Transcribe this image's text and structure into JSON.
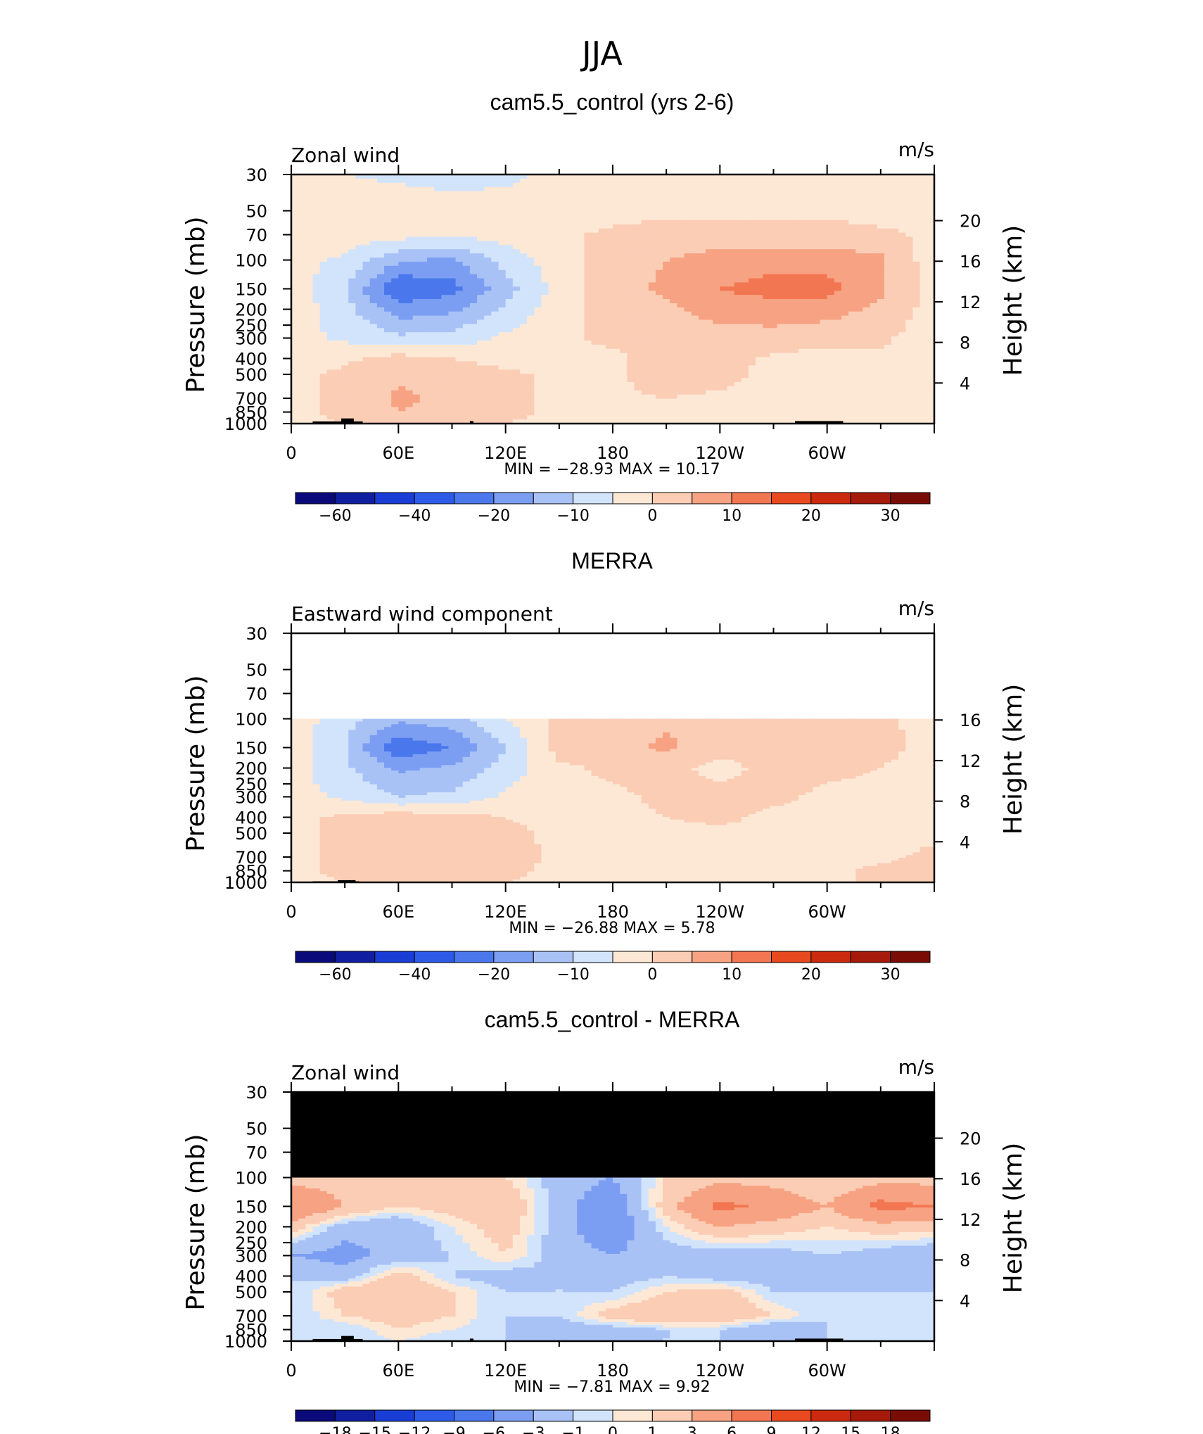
{
  "page": {
    "title": "JJA"
  },
  "colors": {
    "panel_abs": [
      "#0a0a7a",
      "#0f1fa0",
      "#1a3dd6",
      "#2d5be8",
      "#4a78ec",
      "#7c9ef2",
      "#a9c2f6",
      "#d2e4fb",
      "#fde8d6",
      "#fbcdb5",
      "#f7a282",
      "#f37652",
      "#e8491f",
      "#cc2a0e",
      "#a51a0a",
      "#7a0c06"
    ],
    "panel_diff": [
      "#0a0a7a",
      "#0f1fa0",
      "#1a3dd6",
      "#2d5be8",
      "#4a78ec",
      "#7c9ef2",
      "#a9c2f6",
      "#d2e4fb",
      "#fde8d6",
      "#fbcdb5",
      "#f7a282",
      "#f37652",
      "#e8491f",
      "#cc2a0e",
      "#a51a0a",
      "#7a0c06"
    ],
    "missing": "#000000",
    "topography": "#000000"
  },
  "chart_data": [
    {
      "type": "heatmap",
      "title": "cam5.5_control (yrs 2-6)",
      "left_label": "Zonal wind",
      "units": "m/s",
      "ylabel": "Pressure (mb)",
      "ylabel_right": "Height (km)",
      "x_ticklabels": [
        "0",
        "60E",
        "120E",
        "180",
        "120W",
        "60W"
      ],
      "x_ticks_deg": [
        0,
        60,
        120,
        180,
        240,
        300
      ],
      "xlim": [
        0,
        360
      ],
      "y_ticklabels": [
        "30",
        "50",
        "70",
        "100",
        "150",
        "200",
        "250",
        "300",
        "400",
        "500",
        "700",
        "850",
        "1000"
      ],
      "y_ticks": [
        30,
        50,
        70,
        100,
        150,
        200,
        250,
        300,
        400,
        500,
        700,
        850,
        1000
      ],
      "ylim": [
        1000,
        30
      ],
      "y_scale": "log",
      "right_ticklabels": [
        "20",
        "16",
        "12",
        "8",
        "4"
      ],
      "right_ticks_km": [
        20,
        16,
        12,
        8,
        4
      ],
      "min_max_label": "MIN = −28.93   MAX =  10.17",
      "min": -28.93,
      "max": 10.17,
      "colorbar_labels": [
        "−60",
        "−40",
        "−20",
        "−10",
        "0",
        "10",
        "20",
        "30"
      ],
      "colorbar_levels": [
        -70,
        -60,
        -50,
        -40,
        -30,
        -20,
        -15,
        -10,
        -5,
        0,
        5,
        10,
        15,
        20,
        25,
        30,
        35
      ],
      "data_top_mb": 30,
      "field": {
        "lon": [
          0,
          30,
          60,
          90,
          120,
          150,
          180,
          210,
          240,
          270,
          300,
          330,
          360
        ],
        "lev": [
          30,
          50,
          70,
          100,
          150,
          200,
          300,
          400,
          500,
          700,
          850,
          1000
        ],
        "u": [
          [
            -4,
            -5,
            -6,
            -7,
            -6,
            -4,
            -3,
            -3,
            -3,
            -3,
            -4,
            -4,
            -4
          ],
          [
            -2,
            -2,
            -2,
            -3,
            -3,
            -2,
            -2,
            -1,
            -1,
            -1,
            -1,
            -2,
            -2
          ],
          [
            -1,
            -2,
            -3,
            -4,
            -3,
            -1,
            1,
            2,
            2,
            2,
            2,
            1,
            -1
          ],
          [
            -3,
            -6,
            -14,
            -16,
            -8,
            -2,
            2,
            5,
            7,
            8,
            8,
            6,
            -3
          ],
          [
            -2,
            -10,
            -25,
            -22,
            -12,
            -3,
            3,
            6,
            10,
            12,
            12,
            6,
            -2
          ],
          [
            -2,
            -8,
            -18,
            -16,
            -9,
            -2,
            2,
            4,
            7,
            8,
            7,
            4,
            -2
          ],
          [
            -3,
            -6,
            -9,
            -8,
            -4,
            -1,
            1,
            2,
            3,
            3,
            2,
            1,
            -3
          ],
          [
            -2,
            -1,
            2,
            0,
            -2,
            -1,
            -1,
            2,
            2,
            -1,
            -2,
            -1,
            -2
          ],
          [
            -1,
            1,
            4,
            3,
            1,
            -1,
            -1,
            3,
            2,
            -2,
            -3,
            -1,
            -1
          ],
          [
            -1,
            1,
            6,
            4,
            1,
            -1,
            -1,
            0,
            -1,
            -2,
            -4,
            -2,
            -1
          ],
          [
            -1,
            1,
            5,
            3,
            1,
            -1,
            -1,
            -1,
            -2,
            -3,
            -2,
            -1,
            -1
          ],
          [
            -1,
            0,
            2,
            1,
            0,
            -1,
            -1,
            -1,
            -1,
            -1,
            -1,
            -1,
            -1
          ]
        ]
      },
      "topography": [
        {
          "lon_start": 12,
          "lon_end": 40,
          "top_mb": 970
        },
        {
          "lon_start": 28,
          "lon_end": 35,
          "top_mb": 930
        },
        {
          "lon_start": 100,
          "lon_end": 102,
          "top_mb": 965
        },
        {
          "lon_start": 282,
          "lon_end": 309,
          "top_mb": 965
        }
      ]
    },
    {
      "type": "heatmap",
      "title": "MERRA",
      "left_label": "Eastward wind component",
      "units": "m/s",
      "ylabel": "Pressure (mb)",
      "ylabel_right": "Height (km)",
      "x_ticklabels": [
        "0",
        "60E",
        "120E",
        "180",
        "120W",
        "60W"
      ],
      "x_ticks_deg": [
        0,
        60,
        120,
        180,
        240,
        300
      ],
      "xlim": [
        0,
        360
      ],
      "y_ticklabels": [
        "30",
        "50",
        "70",
        "100",
        "150",
        "200",
        "250",
        "300",
        "400",
        "500",
        "700",
        "850",
        "1000"
      ],
      "y_ticks": [
        30,
        50,
        70,
        100,
        150,
        200,
        250,
        300,
        400,
        500,
        700,
        850,
        1000
      ],
      "ylim": [
        1000,
        30
      ],
      "y_scale": "log",
      "right_ticklabels": [
        "16",
        "12",
        "8",
        "4"
      ],
      "right_ticks_km": [
        16,
        12,
        8,
        4
      ],
      "min_max_label": "MIN = −26.88   MAX =   5.78",
      "min": -26.88,
      "max": 5.78,
      "colorbar_labels": [
        "−60",
        "−40",
        "−20",
        "−10",
        "0",
        "10",
        "20",
        "30"
      ],
      "colorbar_levels": [
        -70,
        -60,
        -50,
        -40,
        -30,
        -20,
        -15,
        -10,
        -5,
        0,
        5,
        10,
        15,
        20,
        25,
        30,
        35
      ],
      "data_top_mb": 100,
      "field": {
        "lon": [
          0,
          30,
          60,
          90,
          120,
          150,
          180,
          210,
          240,
          270,
          300,
          330,
          360
        ],
        "lev": [
          100,
          150,
          200,
          300,
          400,
          500,
          700,
          850,
          1000
        ],
        "u": [
          [
            -2,
            -8,
            -14,
            -12,
            -5,
            1,
            2,
            4,
            4,
            3,
            2,
            1,
            -2
          ],
          [
            -2,
            -10,
            -24,
            -20,
            -10,
            2,
            3,
            6,
            2,
            3,
            3,
            2,
            -2
          ],
          [
            -3,
            -9,
            -16,
            -14,
            -8,
            -1,
            1,
            2,
            -2,
            2,
            1,
            0,
            -3
          ],
          [
            -3,
            -6,
            -10,
            -9,
            -4,
            -1,
            -1,
            1,
            2,
            1,
            -1,
            -1,
            -3
          ],
          [
            -1,
            1,
            3,
            2,
            0,
            -1,
            -1,
            0,
            1,
            -1,
            -1,
            -1,
            -1
          ],
          [
            -1,
            1,
            4,
            3,
            1,
            -1,
            -1,
            -1,
            -1,
            -1,
            -1,
            -1,
            -1
          ],
          [
            -1,
            1,
            5,
            4,
            2,
            -1,
            -1,
            -1,
            -1,
            -2,
            -1,
            -1,
            1
          ],
          [
            -1,
            1,
            3,
            2,
            1,
            -1,
            -1,
            -1,
            -1,
            -1,
            -1,
            1,
            2
          ],
          [
            -1,
            0,
            1,
            1,
            0,
            -1,
            -1,
            -1,
            -1,
            -1,
            -1,
            1,
            1
          ]
        ]
      },
      "topography": [
        {
          "lon_start": 12,
          "lon_end": 38,
          "top_mb": 985
        },
        {
          "lon_start": 26,
          "lon_end": 36,
          "top_mb": 970
        }
      ]
    },
    {
      "type": "heatmap",
      "title": "cam5.5_control - MERRA",
      "left_label": "Zonal wind",
      "units": "m/s",
      "ylabel": "Pressure (mb)",
      "ylabel_right": "Height (km)",
      "x_ticklabels": [
        "0",
        "60E",
        "120E",
        "180",
        "120W",
        "60W"
      ],
      "x_ticks_deg": [
        0,
        60,
        120,
        180,
        240,
        300
      ],
      "xlim": [
        0,
        360
      ],
      "y_ticklabels": [
        "30",
        "50",
        "70",
        "100",
        "150",
        "200",
        "250",
        "300",
        "400",
        "500",
        "700",
        "850",
        "1000"
      ],
      "y_ticks": [
        30,
        50,
        70,
        100,
        150,
        200,
        250,
        300,
        400,
        500,
        700,
        850,
        1000
      ],
      "ylim": [
        1000,
        30
      ],
      "y_scale": "log",
      "right_ticklabels": [
        "20",
        "16",
        "12",
        "8",
        "4"
      ],
      "right_ticks_km": [
        20,
        16,
        12,
        8,
        4
      ],
      "min_max_label": "MIN =   −7.81   MAX =   9.92",
      "min": -7.81,
      "max": 9.92,
      "colorbar_labels": [
        "−18",
        "−15",
        "−12",
        "−9",
        "−6",
        "−3",
        "−1",
        "0",
        "1",
        "3",
        "6",
        "9",
        "12",
        "15",
        "18"
      ],
      "colorbar_levels": [
        -21,
        -18,
        -15,
        -12,
        -9,
        -6,
        -3,
        -1,
        0,
        1,
        3,
        6,
        9,
        12,
        15,
        18,
        21
      ],
      "data_top_mb": 100,
      "missing_above_mb": 100,
      "field": {
        "lon": [
          0,
          30,
          60,
          90,
          120,
          150,
          180,
          210,
          240,
          270,
          300,
          330,
          360
        ],
        "lev": [
          100,
          150,
          200,
          300,
          400,
          500,
          700,
          850,
          1000
        ],
        "u": [
          [
            2,
            2,
            1,
            2,
            1,
            -2,
            -3,
            1,
            2,
            2,
            1,
            2,
            2
          ],
          [
            6,
            3,
            1,
            2,
            3,
            -2,
            -5,
            2,
            7,
            5,
            3,
            7,
            6
          ],
          [
            2,
            -2,
            -3,
            0,
            2,
            -2,
            -5,
            0,
            3,
            2,
            1,
            2,
            2
          ],
          [
            -3,
            -4,
            -2,
            -1,
            1,
            -2,
            -3,
            -2,
            -2,
            -2,
            -1,
            -2,
            -3
          ],
          [
            -1,
            -2,
            2,
            -1,
            -2,
            -1,
            -2,
            -1,
            -2,
            -2,
            -1,
            -2,
            -1
          ],
          [
            -1,
            2,
            3,
            1,
            -1,
            -1,
            -1,
            1,
            2,
            -1,
            -1,
            -1,
            -1
          ],
          [
            -1,
            1,
            2,
            1,
            -1,
            -1,
            2,
            3,
            3,
            1,
            -1,
            -1,
            -1
          ],
          [
            -1,
            -1,
            1,
            0,
            -1,
            -2,
            -2,
            -1,
            -1,
            -3,
            -1,
            -1,
            -1
          ],
          [
            -1,
            -1,
            0,
            -1,
            -1,
            -1,
            -1,
            -1,
            -1,
            -1,
            -1,
            -1,
            -1
          ]
        ]
      },
      "topography": [
        {
          "lon_start": 12,
          "lon_end": 40,
          "top_mb": 970
        },
        {
          "lon_start": 28,
          "lon_end": 35,
          "top_mb": 930
        },
        {
          "lon_start": 100,
          "lon_end": 102,
          "top_mb": 965
        },
        {
          "lon_start": 282,
          "lon_end": 309,
          "top_mb": 965
        }
      ]
    }
  ]
}
